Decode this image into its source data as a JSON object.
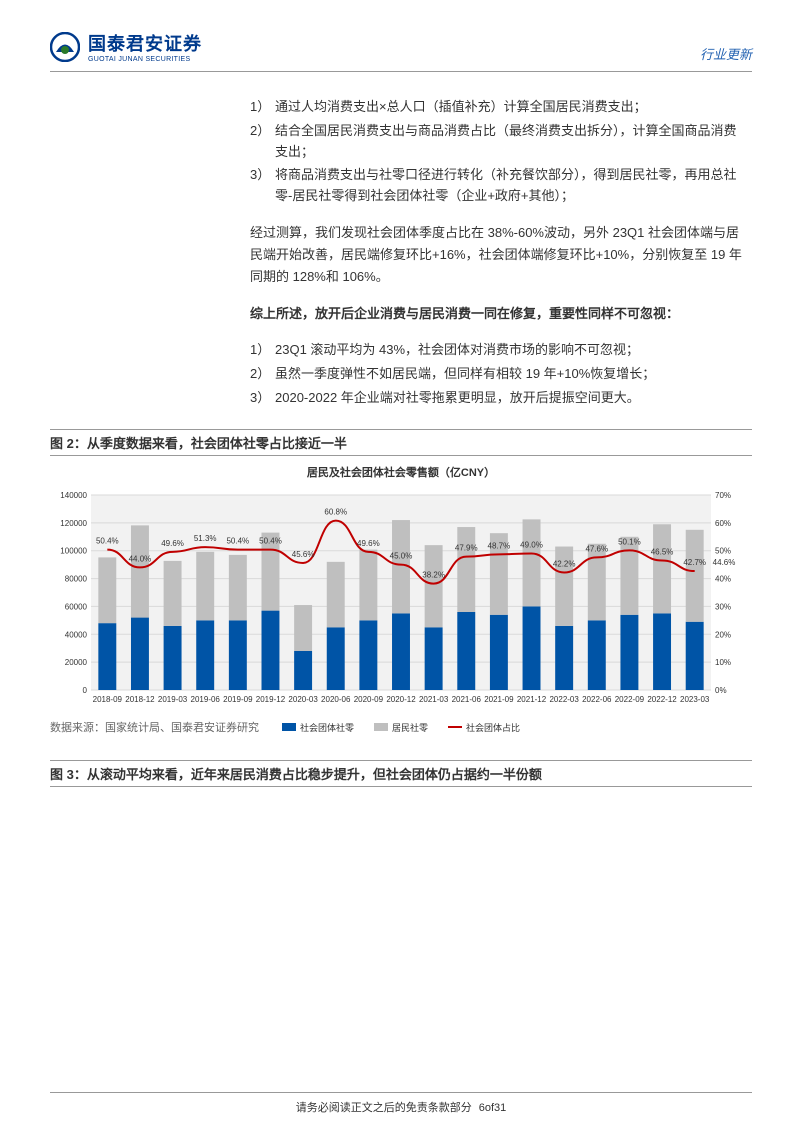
{
  "header": {
    "logo_cn": "国泰君安证券",
    "logo_en": "GUOTAI JUNAN SECURITIES",
    "doc_type": "行业更新"
  },
  "section1": {
    "list1": [
      {
        "marker": "1）",
        "text": "通过人均消费支出×总人口（插值补充）计算全国居民消费支出；"
      },
      {
        "marker": "2）",
        "text": "结合全国居民消费支出与商品消费占比（最终消费支出拆分），计算全国商品消费支出；"
      },
      {
        "marker": "3）",
        "text": "将商品消费支出与社零口径进行转化（补充餐饮部分），得到居民社零，再用总社零-居民社零得到社会团体社零（企业+政府+其他）；"
      }
    ],
    "para1": "经过测算，我们发现社会团体季度占比在 38%-60%波动，另外 23Q1 社会团体端与居民端开始改善，居民端修复环比+16%，社会团体端修复环比+10%，分别恢复至 19 年同期的 128%和 106%。",
    "para2_bold": "综上所述，放开后企业消费与居民消费一同在修复，重要性同样不可忽视：",
    "list2": [
      {
        "marker": "1）",
        "text": "23Q1 滚动平均为 43%，社会团体对消费市场的影响不可忽视；"
      },
      {
        "marker": "2）",
        "text": "虽然一季度弹性不如居民端，但同样有相较 19 年+10%恢复增长；"
      },
      {
        "marker": "3）",
        "text": "2020-2022 年企业端对社零拖累更明显，放开后提振空间更大。"
      }
    ]
  },
  "figure2": {
    "caption": "图 2：从季度数据来看，社会团体社零占比接近一半",
    "chart_title": "居民及社会团体社会零售额（亿CNY）",
    "legend": {
      "series1": "社会团体社零",
      "series2": "居民社零",
      "series3": "社会团体占比"
    },
    "source": "数据来源：国家统计局、国泰君安证券研究",
    "chart": {
      "type": "combo-bar-line",
      "categories": [
        "2018-09",
        "2018-12",
        "2019-03",
        "2019-06",
        "2019-09",
        "2019-12",
        "2020-03",
        "2020-06",
        "2020-09",
        "2020-12",
        "2021-03",
        "2021-06",
        "2021-09",
        "2021-12",
        "2022-03",
        "2022-06",
        "2022-09",
        "2022-12",
        "2023-03"
      ],
      "bar1_values": [
        48000,
        52000,
        46000,
        50000,
        50000,
        57000,
        28000,
        45000,
        50000,
        55000,
        45000,
        56000,
        54000,
        60000,
        46000,
        50000,
        54000,
        55000,
        49000
      ],
      "bar2_values": [
        47200,
        66200,
        46700,
        49200,
        47000,
        56000,
        33000,
        47000,
        50800,
        67000,
        59000,
        61000,
        58600,
        62500,
        57000,
        55000,
        56000,
        64000,
        66000
      ],
      "totals": [
        95200,
        118200,
        92700,
        99200,
        97000,
        113000,
        61000,
        92000,
        100800,
        122000,
        104000,
        117000,
        112600,
        122500,
        103000,
        105000,
        110000,
        119000,
        115000
      ],
      "line_values": [
        50.4,
        44.0,
        49.6,
        51.3,
        50.4,
        50.4,
        45.6,
        60.8,
        49.6,
        45.0,
        38.2,
        47.9,
        48.7,
        49.0,
        42.2,
        47.6,
        50.1,
        46.5,
        42.7
      ],
      "line_label_extra": "44.6",
      "y1_max": 140000,
      "y1_ticks": [
        0,
        20000,
        40000,
        60000,
        80000,
        100000,
        120000,
        140000
      ],
      "y2_max": 70,
      "y2_ticks": [
        "0%",
        "10%",
        "20%",
        "30%",
        "40%",
        "50%",
        "60%",
        "70%"
      ],
      "colors": {
        "bar1": "#0054a6",
        "bar2": "#bfbfbf",
        "line": "#c00000",
        "bg": "#f2f2f2",
        "grid": "#d9d9d9"
      },
      "bar_width": 0.55,
      "label_fontsize": 8,
      "axis_fontsize": 8
    }
  },
  "figure3": {
    "caption": "图 3：从滚动平均来看，近年来居民消费占比稳步提升，但社会团体仍占据约一半份额"
  },
  "footer": {
    "text": "请务必阅读正文之后的免责条款部分",
    "page": "6of31"
  }
}
